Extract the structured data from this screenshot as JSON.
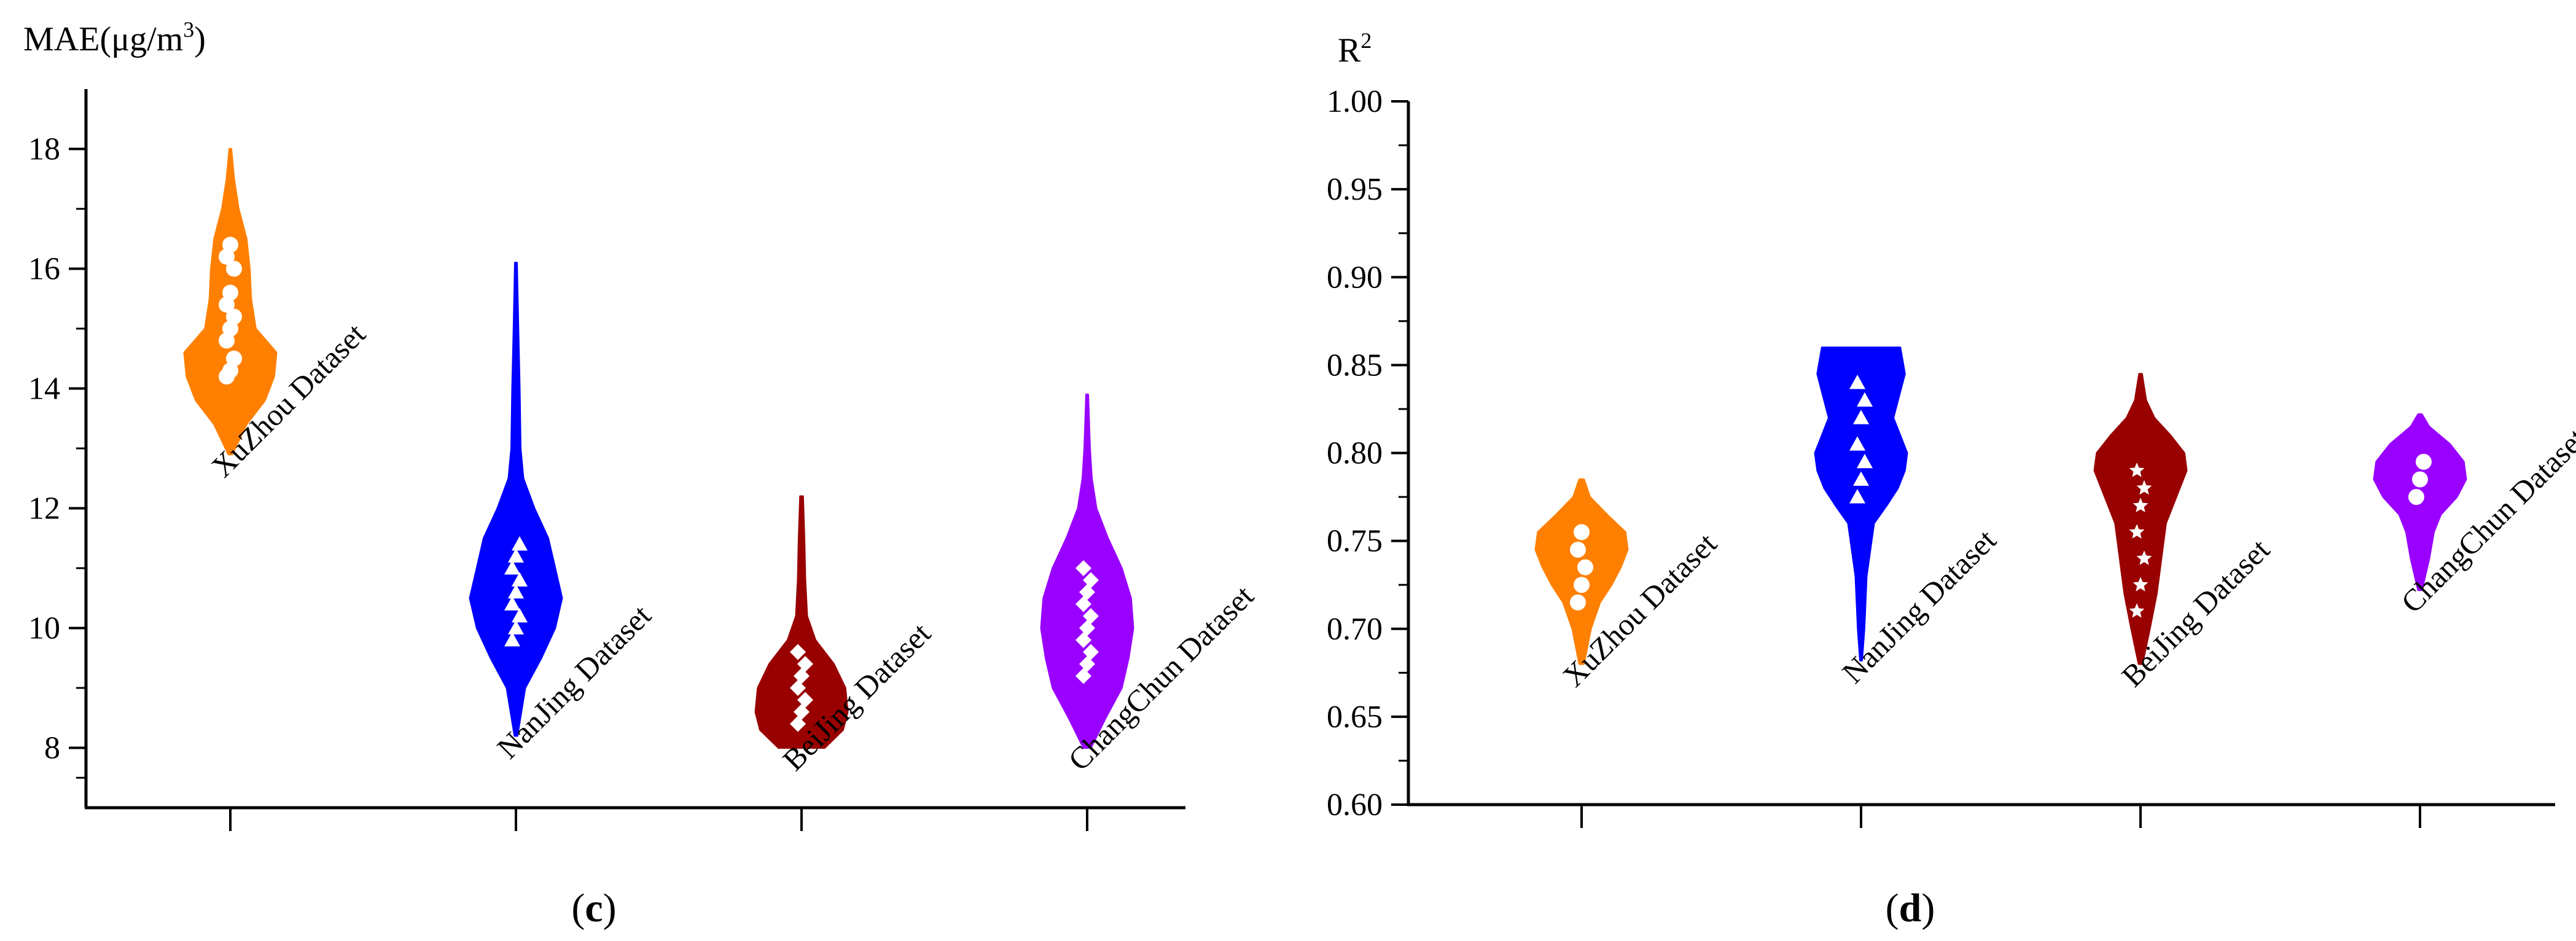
{
  "chart_data": [
    {
      "type": "violin",
      "panel_label": "(c)",
      "panel_letter": "c",
      "ylabel": "MAE(μg/m3)",
      "ylabel_main": "MAE(μg/m",
      "ylabel_sup": "3",
      "ylabel_end": ")",
      "ylim": [
        7,
        19
      ],
      "yticks": [
        8,
        10,
        12,
        14,
        16,
        18
      ],
      "ytick_labels": [
        "8",
        "10",
        "12",
        "14",
        "16",
        "18"
      ],
      "grid": false,
      "categories": [
        "XuZhou Dataset",
        "NanJing Dataset",
        "BeiJing Dataset",
        "ChangChun Dataset"
      ],
      "colors": [
        "#ff8000",
        "#0000ff",
        "#990000",
        "#9900ff"
      ],
      "marker": [
        "circle",
        "triangle",
        "diamond",
        "diamond"
      ],
      "violins": [
        {
          "min": 12.9,
          "max": 18.0,
          "profile": [
            [
              12.9,
              0.04
            ],
            [
              13.4,
              0.35
            ],
            [
              13.8,
              0.75
            ],
            [
              14.2,
              0.95
            ],
            [
              14.6,
              1.0
            ],
            [
              15.0,
              0.55
            ],
            [
              15.5,
              0.45
            ],
            [
              16.0,
              0.42
            ],
            [
              16.5,
              0.35
            ],
            [
              17.0,
              0.18
            ],
            [
              17.5,
              0.08
            ],
            [
              18.0,
              0.02
            ]
          ],
          "points": [
            14.2,
            14.3,
            14.5,
            14.8,
            15.0,
            15.2,
            15.4,
            15.6,
            16.0,
            16.2,
            16.4
          ]
        },
        {
          "min": 8.2,
          "max": 16.1,
          "profile": [
            [
              8.2,
              0.03
            ],
            [
              9.0,
              0.2
            ],
            [
              9.5,
              0.55
            ],
            [
              10.0,
              0.85
            ],
            [
              10.5,
              1.0
            ],
            [
              11.0,
              0.85
            ],
            [
              11.5,
              0.7
            ],
            [
              12.0,
              0.4
            ],
            [
              12.5,
              0.16
            ],
            [
              13.0,
              0.1
            ],
            [
              14.0,
              0.08
            ],
            [
              15.0,
              0.05
            ],
            [
              16.1,
              0.02
            ]
          ],
          "points": [
            9.8,
            10.0,
            10.2,
            10.4,
            10.6,
            10.8,
            11.0,
            11.2,
            11.4
          ]
        },
        {
          "min": 8.0,
          "max": 12.2,
          "profile": [
            [
              8.0,
              0.5
            ],
            [
              8.3,
              0.9
            ],
            [
              8.6,
              1.0
            ],
            [
              9.0,
              0.95
            ],
            [
              9.4,
              0.7
            ],
            [
              9.8,
              0.3
            ],
            [
              10.2,
              0.12
            ],
            [
              10.8,
              0.08
            ],
            [
              11.5,
              0.06
            ],
            [
              12.2,
              0.03
            ]
          ],
          "points": [
            8.4,
            8.6,
            8.8,
            9.0,
            9.2,
            9.4,
            9.6
          ]
        },
        {
          "min": 8.0,
          "max": 13.9,
          "profile": [
            [
              8.0,
              0.08
            ],
            [
              8.5,
              0.4
            ],
            [
              9.0,
              0.75
            ],
            [
              9.5,
              0.9
            ],
            [
              10.0,
              1.0
            ],
            [
              10.5,
              0.95
            ],
            [
              11.0,
              0.75
            ],
            [
              11.5,
              0.45
            ],
            [
              12.0,
              0.2
            ],
            [
              12.5,
              0.1
            ],
            [
              13.0,
              0.06
            ],
            [
              13.9,
              0.02
            ]
          ],
          "points": [
            9.2,
            9.4,
            9.6,
            9.8,
            10.0,
            10.2,
            10.4,
            10.6,
            10.8,
            11.0
          ]
        }
      ]
    },
    {
      "type": "violin",
      "panel_label": "(d)",
      "panel_letter": "d",
      "ylabel": "R2",
      "ylabel_main": "R",
      "ylabel_sup": "2",
      "ylim": [
        0.6,
        1.0
      ],
      "yticks": [
        0.6,
        0.65,
        0.7,
        0.75,
        0.8,
        0.85,
        0.9,
        0.95,
        1.0
      ],
      "ytick_labels": [
        "0.60",
        "0.65",
        "0.70",
        "0.75",
        "0.80",
        "0.85",
        "0.90",
        "0.95",
        "1.00"
      ],
      "grid": false,
      "categories": [
        "XuZhou Dataset",
        "NanJing Dataset",
        "BeiJing Dataset",
        "ChangChun Dataset"
      ],
      "colors": [
        "#ff8000",
        "#0000ff",
        "#990000",
        "#9900ff"
      ],
      "marker": [
        "circle",
        "triangle",
        "star",
        "circle"
      ],
      "violins": [
        {
          "min": 0.68,
          "max": 0.785,
          "profile": [
            [
              0.68,
              0.05
            ],
            [
              0.7,
              0.2
            ],
            [
              0.715,
              0.4
            ],
            [
              0.725,
              0.65
            ],
            [
              0.735,
              0.85
            ],
            [
              0.745,
              1.0
            ],
            [
              0.755,
              0.95
            ],
            [
              0.765,
              0.55
            ],
            [
              0.775,
              0.18
            ],
            [
              0.785,
              0.05
            ]
          ],
          "points": [
            0.715,
            0.725,
            0.735,
            0.745,
            0.755
          ]
        },
        {
          "min": 0.682,
          "max": 0.86,
          "profile": [
            [
              0.682,
              0.02
            ],
            [
              0.7,
              0.07
            ],
            [
              0.73,
              0.12
            ],
            [
              0.76,
              0.28
            ],
            [
              0.77,
              0.55
            ],
            [
              0.78,
              0.8
            ],
            [
              0.79,
              0.95
            ],
            [
              0.8,
              1.0
            ],
            [
              0.81,
              0.85
            ],
            [
              0.82,
              0.7
            ],
            [
              0.83,
              0.8
            ],
            [
              0.845,
              0.95
            ],
            [
              0.86,
              0.85
            ]
          ],
          "points": [
            0.775,
            0.785,
            0.795,
            0.805,
            0.82,
            0.83,
            0.84
          ]
        },
        {
          "min": 0.68,
          "max": 0.845,
          "profile": [
            [
              0.68,
              0.04
            ],
            [
              0.7,
              0.2
            ],
            [
              0.72,
              0.35
            ],
            [
              0.74,
              0.45
            ],
            [
              0.76,
              0.55
            ],
            [
              0.78,
              0.85
            ],
            [
              0.79,
              1.0
            ],
            [
              0.8,
              0.95
            ],
            [
              0.81,
              0.65
            ],
            [
              0.82,
              0.3
            ],
            [
              0.83,
              0.12
            ],
            [
              0.845,
              0.03
            ]
          ],
          "points": [
            0.71,
            0.725,
            0.74,
            0.755,
            0.77,
            0.78,
            0.79
          ]
        },
        {
          "min": 0.722,
          "max": 0.822,
          "profile": [
            [
              0.722,
              0.04
            ],
            [
              0.74,
              0.2
            ],
            [
              0.755,
              0.3
            ],
            [
              0.765,
              0.45
            ],
            [
              0.775,
              0.8
            ],
            [
              0.785,
              1.0
            ],
            [
              0.795,
              0.95
            ],
            [
              0.805,
              0.65
            ],
            [
              0.815,
              0.2
            ],
            [
              0.822,
              0.04
            ]
          ],
          "points": [
            0.775,
            0.785,
            0.795
          ]
        }
      ]
    }
  ]
}
